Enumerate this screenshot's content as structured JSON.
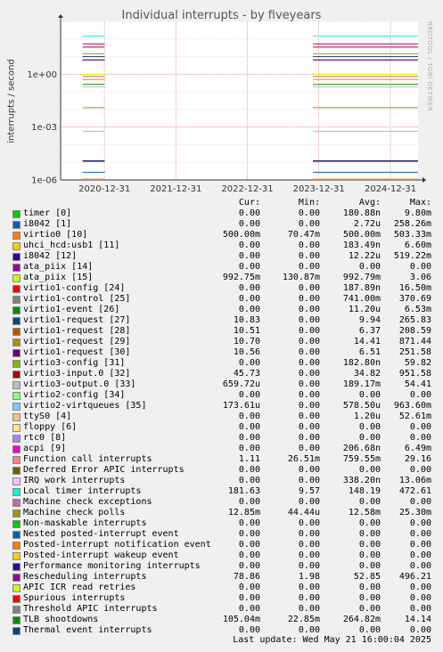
{
  "title": "Individual interrupts - by fiveyears",
  "ylabel": "interrupts / second",
  "vendor": "RRDTOOL / TOBI OETIKER",
  "legend_header": {
    "cur": "Cur:",
    "min": "Min:",
    "avg": "Avg:",
    "max": "Max:"
  },
  "last_update": "Last update: Wed May 21 16:00:04 2025",
  "chart_data": {
    "type": "line",
    "title": "Individual interrupts - by fiveyears",
    "ylabel": "interrupts / second",
    "yscale": "log",
    "ylim": [
      1e-06,
      1000
    ],
    "yticks": [
      "1e-06",
      "1e-03",
      "1e+00"
    ],
    "xticks": [
      "2020-12-31",
      "2021-12-31",
      "2022-12-31",
      "2023-12-31",
      "2024-12-31"
    ],
    "grid": true,
    "series": [
      {
        "name": "timer [0]",
        "color": "#00cc00",
        "cur": "0.00",
        "min": "0.00",
        "avg": "180.88n",
        "max": "9.80m"
      },
      {
        "name": "i8042 [1]",
        "color": "#0066b3",
        "cur": "0.00",
        "min": "0.00",
        "avg": "2.72u",
        "max": "258.26m"
      },
      {
        "name": "virtio0 [10]",
        "color": "#ff8000",
        "cur": "500.00m",
        "min": "70.47m",
        "avg": "500.00m",
        "max": "503.33m"
      },
      {
        "name": "uhci_hcd:usb1 [11]",
        "color": "#ffcc00",
        "cur": "0.00",
        "min": "0.00",
        "avg": "183.49n",
        "max": "6.60m"
      },
      {
        "name": "i8042 [12]",
        "color": "#330099",
        "cur": "0.00",
        "min": "0.00",
        "avg": "12.22u",
        "max": "519.22m"
      },
      {
        "name": "ata_piix [14]",
        "color": "#990099",
        "cur": "0.00",
        "min": "0.00",
        "avg": "0.00",
        "max": "0.00"
      },
      {
        "name": "ata_piix [15]",
        "color": "#ccff00",
        "cur": "992.75m",
        "min": "130.87m",
        "avg": "992.79m",
        "max": "3.06"
      },
      {
        "name": "virtio1-config [24]",
        "color": "#ff0000",
        "cur": "0.00",
        "min": "0.00",
        "avg": "187.89n",
        "max": "16.50m"
      },
      {
        "name": "virtio1-control [25]",
        "color": "#808080",
        "cur": "0.00",
        "min": "0.00",
        "avg": "741.00m",
        "max": "370.69"
      },
      {
        "name": "virtio1-event [26]",
        "color": "#008f00",
        "cur": "0.00",
        "min": "0.00",
        "avg": "11.20u",
        "max": "6.53m"
      },
      {
        "name": "virtio1-request [27]",
        "color": "#00487d",
        "cur": "10.83",
        "min": "0.00",
        "avg": "9.94",
        "max": "265.83"
      },
      {
        "name": "virtio1-request [28]",
        "color": "#b35a00",
        "cur": "10.51",
        "min": "0.00",
        "avg": "6.37",
        "max": "208.59"
      },
      {
        "name": "virtio1-request [29]",
        "color": "#b38f00",
        "cur": "10.70",
        "min": "0.00",
        "avg": "14.41",
        "max": "871.44"
      },
      {
        "name": "virtio1-request [30]",
        "color": "#6b006b",
        "cur": "10.56",
        "min": "0.00",
        "avg": "6.51",
        "max": "251.58"
      },
      {
        "name": "virtio3-config [31]",
        "color": "#8fb300",
        "cur": "0.00",
        "min": "0.00",
        "avg": "182.80n",
        "max": "59.82"
      },
      {
        "name": "virtio3-input.0 [32]",
        "color": "#b30000",
        "cur": "45.73",
        "min": "0.00",
        "avg": "34.82",
        "max": "951.58"
      },
      {
        "name": "virtio3-output.0 [33]",
        "color": "#bebebe",
        "cur": "659.72u",
        "min": "0.00",
        "avg": "189.17m",
        "max": "54.41"
      },
      {
        "name": "virtio2-config [34]",
        "color": "#80ff80",
        "cur": "0.00",
        "min": "0.00",
        "avg": "0.00",
        "max": "0.00"
      },
      {
        "name": "virtio2-virtqueues [35]",
        "color": "#80c9ff",
        "cur": "173.61u",
        "min": "0.00",
        "avg": "578.50u",
        "max": "963.60m"
      },
      {
        "name": "ttyS0 [4]",
        "color": "#ffc080",
        "cur": "0.00",
        "min": "0.00",
        "avg": "1.20u",
        "max": "52.61m"
      },
      {
        "name": "floppy [6]",
        "color": "#ffe680",
        "cur": "0.00",
        "min": "0.00",
        "avg": "0.00",
        "max": "0.00"
      },
      {
        "name": "rtc0 [8]",
        "color": "#aa80ff",
        "cur": "0.00",
        "min": "0.00",
        "avg": "0.00",
        "max": "0.00"
      },
      {
        "name": "acpi [9]",
        "color": "#ee00cc",
        "cur": "0.00",
        "min": "0.00",
        "avg": "206.68n",
        "max": "6.49m"
      },
      {
        "name": "Function call interrupts",
        "color": "#ff8080",
        "cur": "1.11",
        "min": "26.51m",
        "avg": "759.55m",
        "max": "29.16"
      },
      {
        "name": "Deferred Error APIC interrupts",
        "color": "#666600",
        "cur": "0.00",
        "min": "0.00",
        "avg": "0.00",
        "max": "0.00"
      },
      {
        "name": "IRQ work interrupts",
        "color": "#ffbfff",
        "cur": "0.00",
        "min": "0.00",
        "avg": "338.20n",
        "max": "13.06m"
      },
      {
        "name": "Local timer interrupts",
        "color": "#00ffcc",
        "cur": "181.63",
        "min": "9.57",
        "avg": "148.19",
        "max": "472.61"
      },
      {
        "name": "Machine check exceptions",
        "color": "#cc6699",
        "cur": "0.00",
        "min": "0.00",
        "avg": "0.00",
        "max": "0.00"
      },
      {
        "name": "Machine check polls",
        "color": "#999900",
        "cur": "12.85m",
        "min": "44.44u",
        "avg": "12.58m",
        "max": "25.30m"
      },
      {
        "name": "Non-maskable interrupts",
        "color": "#00cc00",
        "cur": "0.00",
        "min": "0.00",
        "avg": "0.00",
        "max": "0.00"
      },
      {
        "name": "Nested posted-interrupt event",
        "color": "#0066b3",
        "cur": "0.00",
        "min": "0.00",
        "avg": "0.00",
        "max": "0.00"
      },
      {
        "name": "Posted-interrupt notification event",
        "color": "#ff8000",
        "cur": "0.00",
        "min": "0.00",
        "avg": "0.00",
        "max": "0.00"
      },
      {
        "name": "Posted-interrupt wakeup event",
        "color": "#ffcc00",
        "cur": "0.00",
        "min": "0.00",
        "avg": "0.00",
        "max": "0.00"
      },
      {
        "name": "Performance monitoring interrupts",
        "color": "#330099",
        "cur": "0.00",
        "min": "0.00",
        "avg": "0.00",
        "max": "0.00"
      },
      {
        "name": "Rescheduling interrupts",
        "color": "#990099",
        "cur": "78.86",
        "min": "1.98",
        "avg": "52.85",
        "max": "496.21"
      },
      {
        "name": "APIC ICR read retries",
        "color": "#ccff00",
        "cur": "0.00",
        "min": "0.00",
        "avg": "0.00",
        "max": "0.00"
      },
      {
        "name": "Spurious interrupts",
        "color": "#ff0000",
        "cur": "0.00",
        "min": "0.00",
        "avg": "0.00",
        "max": "0.00"
      },
      {
        "name": "Threshold APIC interrupts",
        "color": "#808080",
        "cur": "0.00",
        "min": "0.00",
        "avg": "0.00",
        "max": "0.00"
      },
      {
        "name": "TLB shootdowns",
        "color": "#008f00",
        "cur": "105.04m",
        "min": "22.85m",
        "avg": "264.82m",
        "max": "14.14"
      },
      {
        "name": "Thermal event interrupts",
        "color": "#00487d",
        "cur": "0.00",
        "min": "0.00",
        "avg": "0.00",
        "max": "0.00"
      }
    ]
  }
}
